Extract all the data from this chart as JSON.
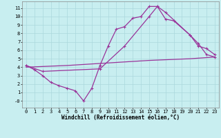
{
  "background_color": "#c8eef0",
  "grid_color": "#aad8dc",
  "line_color": "#993399",
  "marker": "+",
  "markersize": 3,
  "markeredgewidth": 0.8,
  "linewidth": 0.9,
  "xlabel": "Windchill (Refroidissement éolien,°C)",
  "xlabel_fontsize": 5.5,
  "tick_fontsize": 5,
  "xlim": [
    -0.5,
    23.5
  ],
  "ylim": [
    -0.8,
    11.8
  ],
  "xticks": [
    0,
    1,
    2,
    3,
    4,
    5,
    6,
    7,
    8,
    9,
    10,
    11,
    12,
    13,
    14,
    15,
    16,
    17,
    18,
    19,
    20,
    21,
    22,
    23
  ],
  "yticks": [
    0,
    1,
    2,
    3,
    4,
    5,
    6,
    7,
    8,
    9,
    10,
    11
  ],
  "ytick_labels": [
    "-0",
    "1",
    "2",
    "3",
    "4",
    "5",
    "6",
    "7",
    "8",
    "9",
    "10",
    "11"
  ],
  "line1_x": [
    0,
    1,
    2,
    3,
    4,
    5,
    6,
    7,
    8,
    9,
    10,
    11,
    12,
    13,
    14,
    15,
    16,
    17,
    20,
    21,
    22,
    23
  ],
  "line1_y": [
    4.2,
    3.7,
    3.0,
    2.2,
    1.8,
    1.5,
    1.2,
    0.0,
    1.5,
    4.2,
    6.5,
    8.5,
    8.8,
    9.8,
    10.0,
    11.2,
    11.2,
    10.5,
    7.8,
    6.8,
    5.5,
    5.2
  ],
  "line2_x": [
    0,
    2,
    9,
    12,
    15,
    16,
    17,
    18,
    20,
    21,
    22,
    23
  ],
  "line2_y": [
    4.2,
    3.5,
    3.8,
    6.5,
    10.0,
    11.2,
    9.7,
    9.5,
    7.8,
    6.5,
    6.2,
    5.5
  ],
  "line3_x": [
    0,
    5,
    10,
    15,
    20,
    23
  ],
  "line3_y": [
    4.0,
    4.2,
    4.5,
    4.8,
    5.0,
    5.2
  ]
}
